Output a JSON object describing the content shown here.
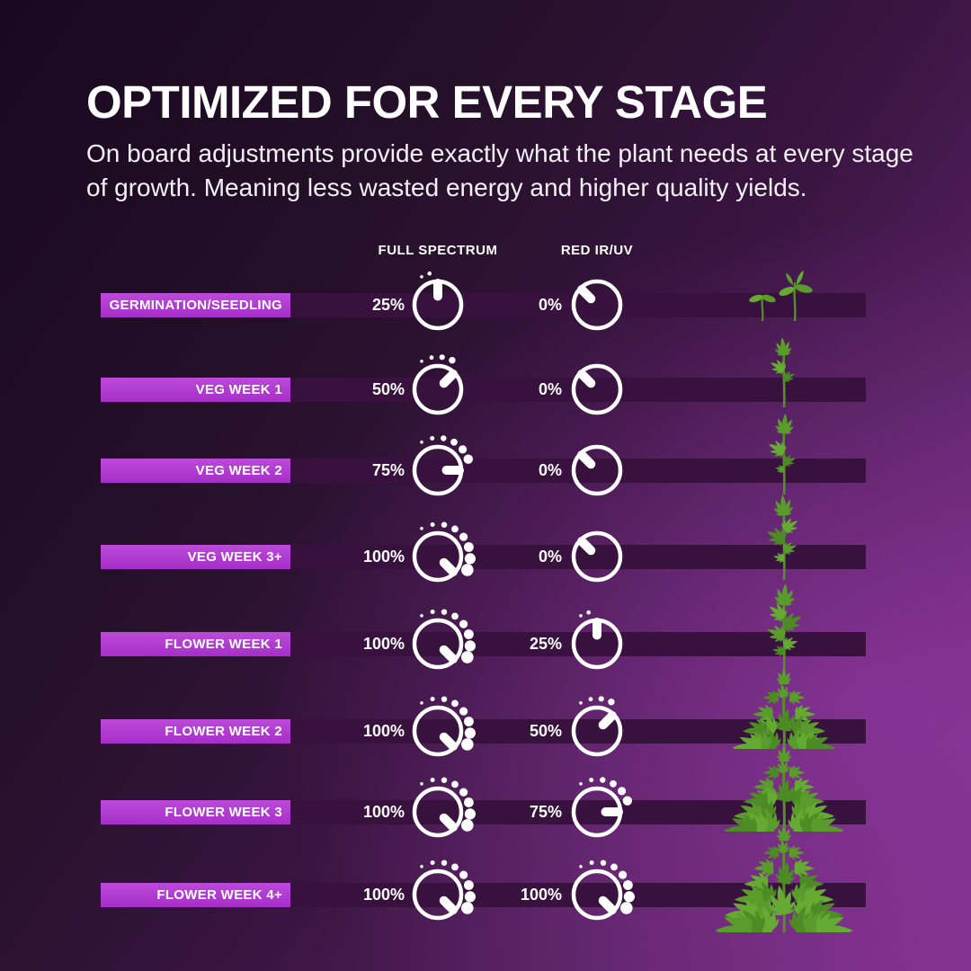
{
  "header": {
    "title": "OPTIMIZED FOR EVERY STAGE",
    "subtitle": "On board adjustments provide exactly what the plant needs at every stage of growth. Meaning less wasted energy and higher quality yields."
  },
  "columns": {
    "full_spectrum": "FULL SPECTRUM",
    "red_ir_uv": "RED IR/UV"
  },
  "rows": [
    {
      "label": "GERMINATION/SEEDLING",
      "full_label": "25%",
      "full_pct": 25,
      "red_label": "0%",
      "red_pct": 0,
      "plant": "seedlings"
    },
    {
      "label": "VEG WEEK 1",
      "full_label": "50%",
      "full_pct": 50,
      "red_label": "0%",
      "red_pct": 0,
      "plant": "veg-1"
    },
    {
      "label": "VEG WEEK 2",
      "full_label": "75%",
      "full_pct": 75,
      "red_label": "0%",
      "red_pct": 0,
      "plant": "veg-2"
    },
    {
      "label": "VEG WEEK 3+",
      "full_label": "100%",
      "full_pct": 100,
      "red_label": "0%",
      "red_pct": 0,
      "plant": "veg-3"
    },
    {
      "label": "FLOWER WEEK 1",
      "full_label": "100%",
      "full_pct": 100,
      "red_label": "25%",
      "red_pct": 25,
      "plant": "veg-4"
    },
    {
      "label": "FLOWER WEEK 2",
      "full_label": "100%",
      "full_pct": 100,
      "red_label": "50%",
      "red_pct": 50,
      "plant": "bush-1"
    },
    {
      "label": "FLOWER WEEK 3",
      "full_label": "100%",
      "full_pct": 100,
      "red_label": "75%",
      "red_pct": 75,
      "plant": "bush-2"
    },
    {
      "label": "FLOWER WEEK 4+",
      "full_label": "100%",
      "full_pct": 100,
      "red_label": "100%",
      "red_pct": 100,
      "plant": "bush-3"
    }
  ],
  "colors": {
    "accent_magenta": "#b13ed3",
    "row_band": "#38113f",
    "knob_white": "#ffffff",
    "leaf_green": "#5a9c2c",
    "bg_dark": "#1c0a21",
    "bg_bright": "#7c3087"
  }
}
